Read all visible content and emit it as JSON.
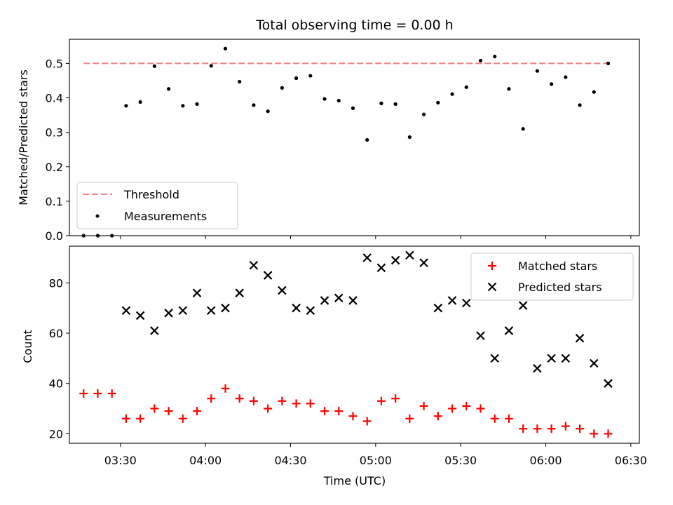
{
  "chart_data": [
    {
      "type": "scatter",
      "title": "Total observing time = 0.00 h",
      "ylabel": "Matched/Predicted stars",
      "ylim": [
        0,
        0.57
      ],
      "yticks": [
        0.0,
        0.1,
        0.2,
        0.3,
        0.4,
        0.5
      ],
      "ytick_labels": [
        "0.0",
        "0.1",
        "0.2",
        "0.3",
        "0.4",
        "0.5"
      ],
      "threshold": 0.5,
      "threshold_color": "#f08080",
      "legend": {
        "position": "bottom-left",
        "entries": [
          "Threshold",
          "Measurements"
        ]
      },
      "series": [
        {
          "name": "Measurements",
          "marker": "dot",
          "color": "#000000",
          "x": [
            "03:17",
            "03:22",
            "03:27",
            "03:32",
            "03:37",
            "03:42",
            "03:47",
            "03:52",
            "03:57",
            "04:02",
            "04:07",
            "04:12",
            "04:17",
            "04:22",
            "04:27",
            "04:32",
            "04:37",
            "04:42",
            "04:47",
            "04:52",
            "04:57",
            "05:02",
            "05:07",
            "05:12",
            "05:17",
            "05:22",
            "05:27",
            "05:32",
            "05:37",
            "05:42",
            "05:47",
            "05:52",
            "05:57",
            "06:02",
            "06:07",
            "06:12",
            "06:17",
            "06:22"
          ],
          "y": [
            0.0,
            0.0,
            0.0,
            0.377,
            0.388,
            0.492,
            0.426,
            0.377,
            0.382,
            0.493,
            0.543,
            0.447,
            0.379,
            0.361,
            0.429,
            0.457,
            0.464,
            0.397,
            0.392,
            0.37,
            0.278,
            0.384,
            0.382,
            0.286,
            0.352,
            0.386,
            0.411,
            0.431,
            0.508,
            0.52,
            0.426,
            0.31,
            0.478,
            0.44,
            0.46,
            0.379,
            0.417,
            0.5
          ]
        }
      ]
    },
    {
      "type": "scatter",
      "xlabel": "Time (UTC)",
      "ylabel": "Count",
      "ylim": [
        16.2,
        94.6
      ],
      "yticks": [
        20,
        40,
        60,
        80
      ],
      "ytick_labels": [
        "20",
        "40",
        "60",
        "80"
      ],
      "xlim": [
        "03:12",
        "06:33"
      ],
      "xticks": [
        "03:30",
        "04:00",
        "04:30",
        "05:00",
        "05:30",
        "06:00",
        "06:30"
      ],
      "legend": {
        "position": "top-right",
        "entries": [
          "Matched stars",
          "Predicted stars"
        ]
      },
      "series": [
        {
          "name": "Matched stars",
          "marker": "plus",
          "color": "#ff0000",
          "x": [
            "03:17",
            "03:22",
            "03:27",
            "03:32",
            "03:37",
            "03:42",
            "03:47",
            "03:52",
            "03:57",
            "04:02",
            "04:07",
            "04:12",
            "04:17",
            "04:22",
            "04:27",
            "04:32",
            "04:37",
            "04:42",
            "04:47",
            "04:52",
            "04:57",
            "05:02",
            "05:07",
            "05:12",
            "05:17",
            "05:22",
            "05:27",
            "05:32",
            "05:37",
            "05:42",
            "05:47",
            "05:52",
            "05:57",
            "06:02",
            "06:07",
            "06:12",
            "06:17",
            "06:22"
          ],
          "y": [
            36,
            36,
            36,
            26,
            26,
            30,
            29,
            26,
            29,
            34,
            38,
            34,
            33,
            30,
            33,
            32,
            32,
            29,
            29,
            27,
            25,
            33,
            34,
            26,
            31,
            27,
            30,
            31,
            30,
            26,
            26,
            22,
            22,
            22,
            23,
            22,
            20,
            20
          ]
        },
        {
          "name": "Predicted stars",
          "marker": "x",
          "color": "#000000",
          "x": [
            "03:32",
            "03:37",
            "03:42",
            "03:47",
            "03:52",
            "03:57",
            "04:02",
            "04:07",
            "04:12",
            "04:17",
            "04:22",
            "04:27",
            "04:32",
            "04:37",
            "04:42",
            "04:47",
            "04:52",
            "04:57",
            "05:02",
            "05:07",
            "05:12",
            "05:17",
            "05:22",
            "05:27",
            "05:32",
            "05:37",
            "05:42",
            "05:47",
            "05:52",
            "05:57",
            "06:02",
            "06:07",
            "06:12",
            "06:17",
            "06:22"
          ],
          "y": [
            69,
            67,
            61,
            68,
            69,
            76,
            69,
            70,
            76,
            87,
            83,
            77,
            70,
            69,
            73,
            74,
            73,
            90,
            86,
            89,
            91,
            88,
            70,
            73,
            72,
            59,
            50,
            61,
            71,
            46,
            50,
            50,
            58,
            48,
            40
          ]
        }
      ]
    }
  ]
}
